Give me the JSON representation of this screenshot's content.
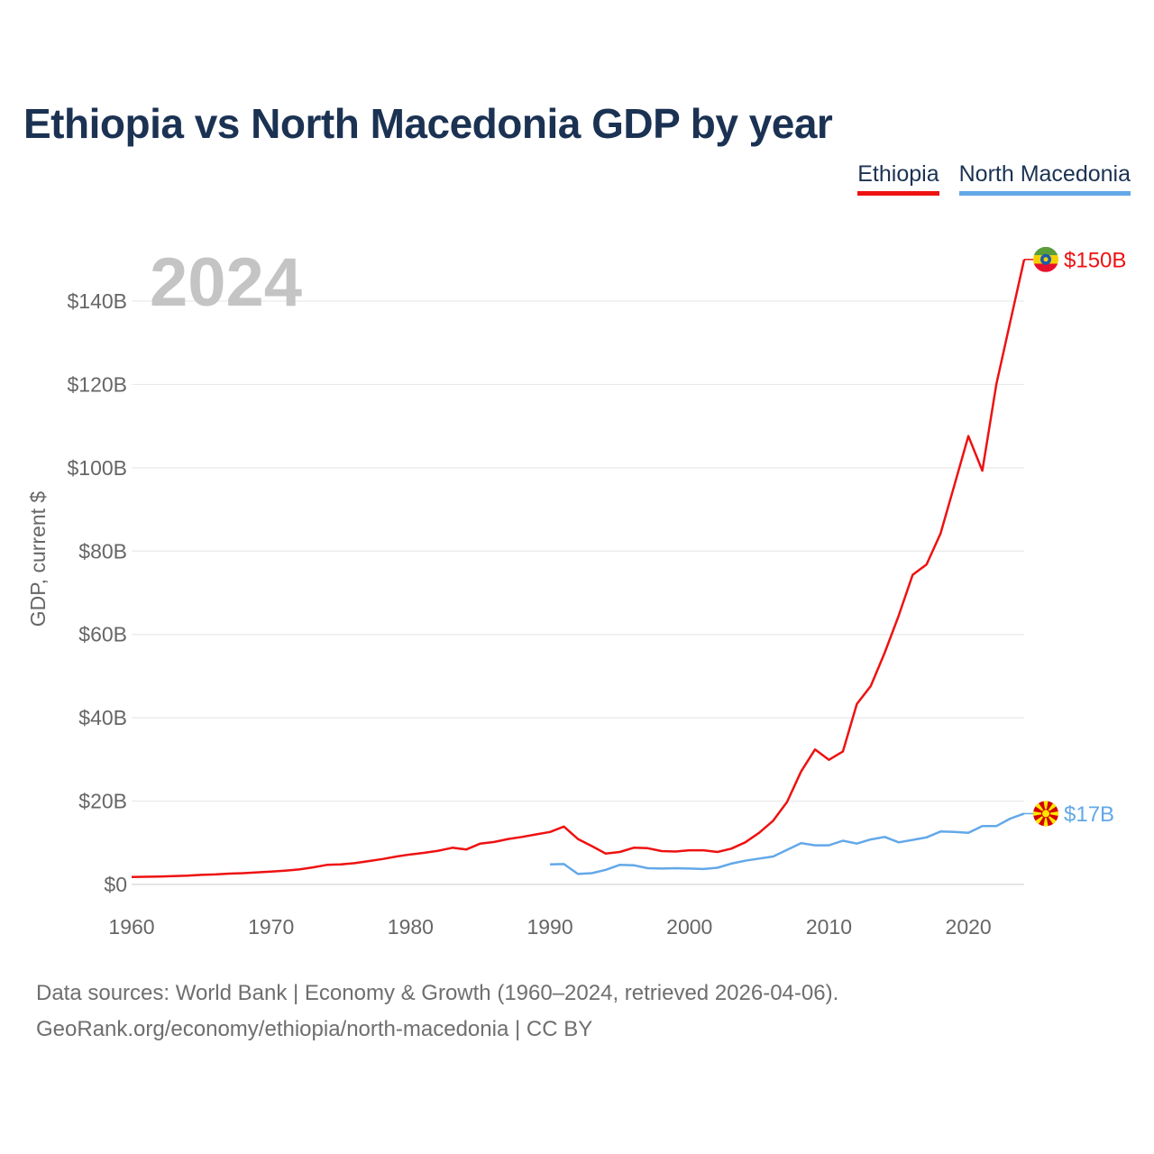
{
  "title": "Ethiopia vs North Macedonia GDP by year",
  "legend": {
    "ethiopia": "Ethiopia",
    "north_macedonia": "North Macedonia"
  },
  "year_watermark": "2024",
  "source_line1": "Data sources: World Bank | Economy & Growth (1960–2024, retrieved 2026-04-06).",
  "source_line2": "GeoRank.org/economy/ethiopia/north-macedonia | CC BY",
  "chart_data": {
    "type": "line",
    "ylabel": "GDP, current $",
    "xlabel": "",
    "xlim": [
      1960,
      2024
    ],
    "ylim": [
      0,
      150
    ],
    "y_unit": "billions USD",
    "x_ticks": [
      "1960",
      "1970",
      "1980",
      "1990",
      "2000",
      "2010",
      "2020"
    ],
    "y_ticks": [
      {
        "value": 0,
        "label": "$0"
      },
      {
        "value": 20,
        "label": "$20B"
      },
      {
        "value": 40,
        "label": "$40B"
      },
      {
        "value": 60,
        "label": "$60B"
      },
      {
        "value": 80,
        "label": "$80B"
      },
      {
        "value": 100,
        "label": "$100B"
      },
      {
        "value": 120,
        "label": "$120B"
      },
      {
        "value": 140,
        "label": "$140B"
      }
    ],
    "series": [
      {
        "name": "Ethiopia",
        "color": "#ee1111",
        "end_label": "$150B",
        "flag": "ethiopia-flag",
        "flag_colors": [
          "#5a9e3a",
          "#f5d000",
          "#e8112d",
          "#1b5bb0"
        ],
        "x": [
          1960,
          1961,
          1962,
          1963,
          1964,
          1965,
          1966,
          1967,
          1968,
          1969,
          1970,
          1971,
          1972,
          1973,
          1974,
          1975,
          1976,
          1977,
          1978,
          1979,
          1980,
          1981,
          1982,
          1983,
          1984,
          1985,
          1986,
          1987,
          1988,
          1989,
          1990,
          1991,
          1992,
          1993,
          1994,
          1995,
          1996,
          1997,
          1998,
          1999,
          2000,
          2001,
          2002,
          2003,
          2004,
          2005,
          2006,
          2007,
          2008,
          2009,
          2010,
          2011,
          2012,
          2013,
          2014,
          2015,
          2016,
          2017,
          2018,
          2019,
          2020,
          2021,
          2022,
          2023,
          2024
        ],
        "values": [
          1.8,
          1.85,
          1.9,
          2.0,
          2.1,
          2.3,
          2.4,
          2.6,
          2.7,
          2.9,
          3.1,
          3.3,
          3.6,
          4.1,
          4.7,
          4.8,
          5.1,
          5.6,
          6.1,
          6.7,
          7.2,
          7.6,
          8.1,
          8.8,
          8.4,
          9.8,
          10.2,
          10.9,
          11.4,
          12.0,
          12.6,
          13.9,
          10.9,
          9.2,
          7.4,
          7.8,
          8.8,
          8.7,
          8.0,
          7.9,
          8.2,
          8.2,
          7.8,
          8.6,
          10.1,
          12.4,
          15.3,
          19.8,
          27.1,
          32.4,
          29.9,
          31.9,
          43.3,
          47.6,
          55.6,
          64.5,
          74.3,
          76.8,
          84.2,
          95.9,
          107.6,
          99.3,
          120.0,
          135.0,
          150.0
        ]
      },
      {
        "name": "North Macedonia",
        "color": "#62a8e8",
        "end_label": "$17B",
        "flag": "north-macedonia-flag",
        "flag_colors": [
          "#d20000",
          "#ffe600"
        ],
        "x": [
          1990,
          1991,
          1992,
          1993,
          1994,
          1995,
          1996,
          1997,
          1998,
          1999,
          2000,
          2001,
          2002,
          2003,
          2004,
          2005,
          2006,
          2007,
          2008,
          2009,
          2010,
          2011,
          2012,
          2013,
          2014,
          2015,
          2016,
          2017,
          2018,
          2019,
          2020,
          2021,
          2022,
          2023,
          2024
        ],
        "values": [
          4.8,
          4.9,
          2.5,
          2.7,
          3.5,
          4.7,
          4.6,
          3.9,
          3.8,
          3.9,
          3.8,
          3.7,
          4.0,
          5.0,
          5.7,
          6.2,
          6.7,
          8.3,
          9.9,
          9.4,
          9.4,
          10.5,
          9.8,
          10.8,
          11.4,
          10.1,
          10.7,
          11.3,
          12.7,
          12.6,
          12.4,
          14.0,
          14.0,
          15.8,
          17.0
        ]
      }
    ]
  }
}
